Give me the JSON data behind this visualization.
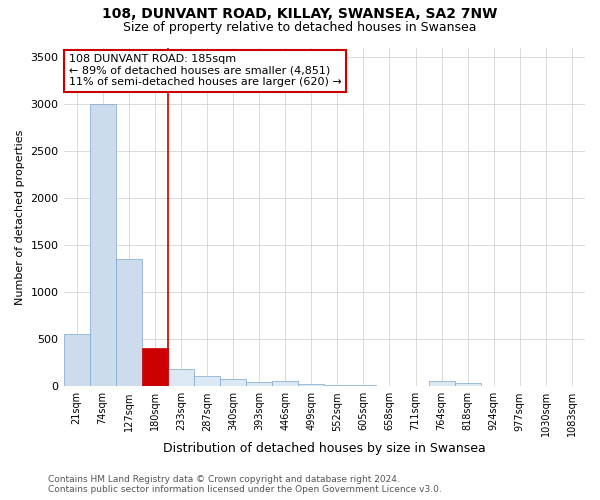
{
  "title": "108, DUNVANT ROAD, KILLAY, SWANSEA, SA2 7NW",
  "subtitle": "Size of property relative to detached houses in Swansea",
  "xlabel": "Distribution of detached houses by size in Swansea",
  "ylabel": "Number of detached properties",
  "annotation_line1": "108 DUNVANT ROAD: 185sqm",
  "annotation_line2": "← 89% of detached houses are smaller (4,851)",
  "annotation_line3": "11% of semi-detached houses are larger (620) →",
  "categories": [
    "21sqm",
    "74sqm",
    "127sqm",
    "180sqm",
    "233sqm",
    "287sqm",
    "340sqm",
    "393sqm",
    "446sqm",
    "499sqm",
    "552sqm",
    "605sqm",
    "658sqm",
    "711sqm",
    "764sqm",
    "818sqm",
    "924sqm",
    "977sqm",
    "1030sqm",
    "1083sqm"
  ],
  "values": [
    560,
    3000,
    1350,
    410,
    185,
    110,
    75,
    50,
    55,
    30,
    15,
    10,
    8,
    6,
    55,
    40,
    5,
    4,
    3,
    3
  ],
  "bar_color_left": "#ccdcec",
  "bar_color_right": "#dce8f4",
  "marker_bar_color": "#cc0000",
  "marker_bar_index": 3,
  "ylim": [
    0,
    3600
  ],
  "yticks": [
    0,
    500,
    1000,
    1500,
    2000,
    2500,
    3000,
    3500
  ],
  "grid_color": "#cccccc",
  "background_color": "#ffffff",
  "annotation_box_facecolor": "#ffffff",
  "annotation_box_edgecolor": "#cc0000",
  "footer_line1": "Contains HM Land Registry data © Crown copyright and database right 2024.",
  "footer_line2": "Contains public sector information licensed under the Open Government Licence v3.0.",
  "title_fontsize": 10,
  "subtitle_fontsize": 9,
  "xlabel_fontsize": 9,
  "ylabel_fontsize": 8,
  "tick_fontsize": 7,
  "annotation_fontsize": 8,
  "footer_fontsize": 6.5
}
